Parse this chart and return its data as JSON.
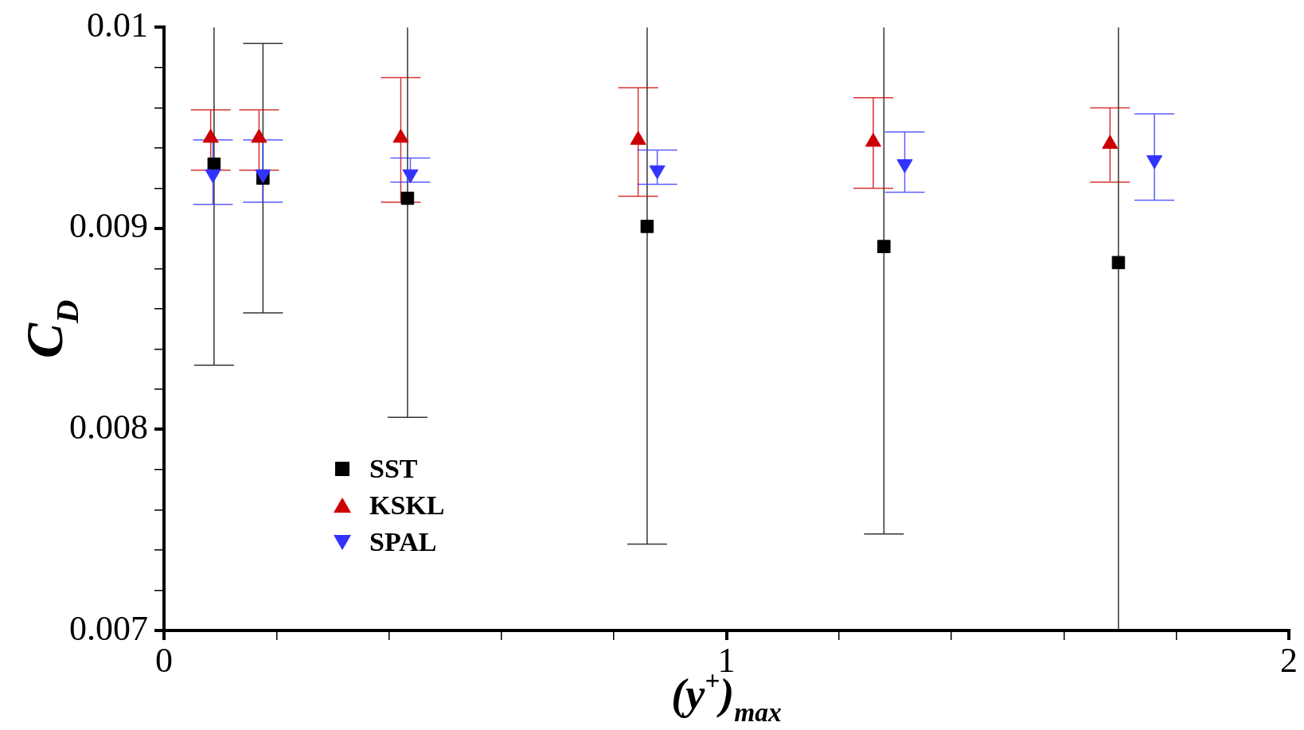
{
  "chart_data": {
    "type": "scatter",
    "xlabel": "(y$^{+}$)$_{max}$",
    "ylabel": "C$_{D}$",
    "xlim": [
      0,
      2
    ],
    "xticks": [
      0,
      {
        "value": 0.2,
        "label": null
      },
      {
        "value": 0.4,
        "label": null
      },
      {
        "value": 0.6,
        "label": null
      },
      {
        "value": 0.8,
        "label": null
      },
      1,
      {
        "value": 1.2,
        "label": null
      },
      {
        "value": 1.4,
        "label": null
      },
      {
        "value": 1.6,
        "label": null
      },
      {
        "value": 1.8,
        "label": null
      },
      2
    ],
    "ylim": [
      0.007,
      0.01
    ],
    "yticks": [
      0.007,
      {
        "value": 0.0072,
        "label": null
      },
      {
        "value": 0.0074,
        "label": null
      },
      {
        "value": 0.0076,
        "label": null
      },
      {
        "value": 0.0078,
        "label": null
      },
      0.008,
      {
        "value": 0.0082,
        "label": null
      },
      {
        "value": 0.0084,
        "label": null
      },
      {
        "value": 0.0086,
        "label": null
      },
      {
        "value": 0.0088,
        "label": null
      },
      0.009,
      {
        "value": 0.0092,
        "label": null
      },
      {
        "value": 0.0094,
        "label": null
      },
      {
        "value": 0.0096,
        "label": null
      },
      {
        "value": 0.0098,
        "label": null
      },
      0.01
    ],
    "grid": false,
    "legend": "bottom left",
    "series": [
      {
        "name": "SST",
        "color": "#000000",
        "marker": "square",
        "x": [
          0.089,
          0.176,
          0.433,
          0.859,
          1.28,
          1.697
        ],
        "values": [
          0.00932,
          0.00925,
          0.00915,
          0.00901,
          0.00891,
          0.00883
        ],
        "errors": [
          [
            0.00832,
            0.01
          ],
          [
            0.00858,
            0.00992
          ],
          [
            0.00806,
            0.01
          ],
          [
            0.00743,
            0.01
          ],
          [
            0.00748,
            0.01
          ],
          [
            0.007,
            0.01
          ]
        ]
      },
      {
        "name": "KSKL",
        "color": "#cc0000",
        "marker": "triangle",
        "x": [
          0.083,
          0.169,
          0.421,
          0.843,
          1.261,
          1.682
        ],
        "values": [
          0.00945,
          0.00945,
          0.00945,
          0.00944,
          0.00943,
          0.00942
        ],
        "errors": [
          [
            0.00929,
            0.00959
          ],
          [
            0.00929,
            0.00959
          ],
          [
            0.00913,
            0.00975
          ],
          [
            0.00916,
            0.0097
          ],
          [
            0.0092,
            0.00965
          ],
          [
            0.00923,
            0.0096
          ]
        ]
      },
      {
        "name": "SPAL",
        "color": "#3333ff",
        "marker": "triangle-down",
        "x": [
          0.087,
          0.176,
          0.438,
          0.877,
          1.317,
          1.761
        ],
        "values": [
          0.00927,
          0.00927,
          0.00927,
          0.00929,
          0.00932,
          0.00934
        ],
        "errors": [
          [
            0.00912,
            0.00944
          ],
          [
            0.00913,
            0.00944
          ],
          [
            0.00923,
            0.00935
          ],
          [
            0.00922,
            0.00939
          ],
          [
            0.00918,
            0.00948
          ],
          [
            0.00914,
            0.00957
          ]
        ]
      }
    ]
  }
}
